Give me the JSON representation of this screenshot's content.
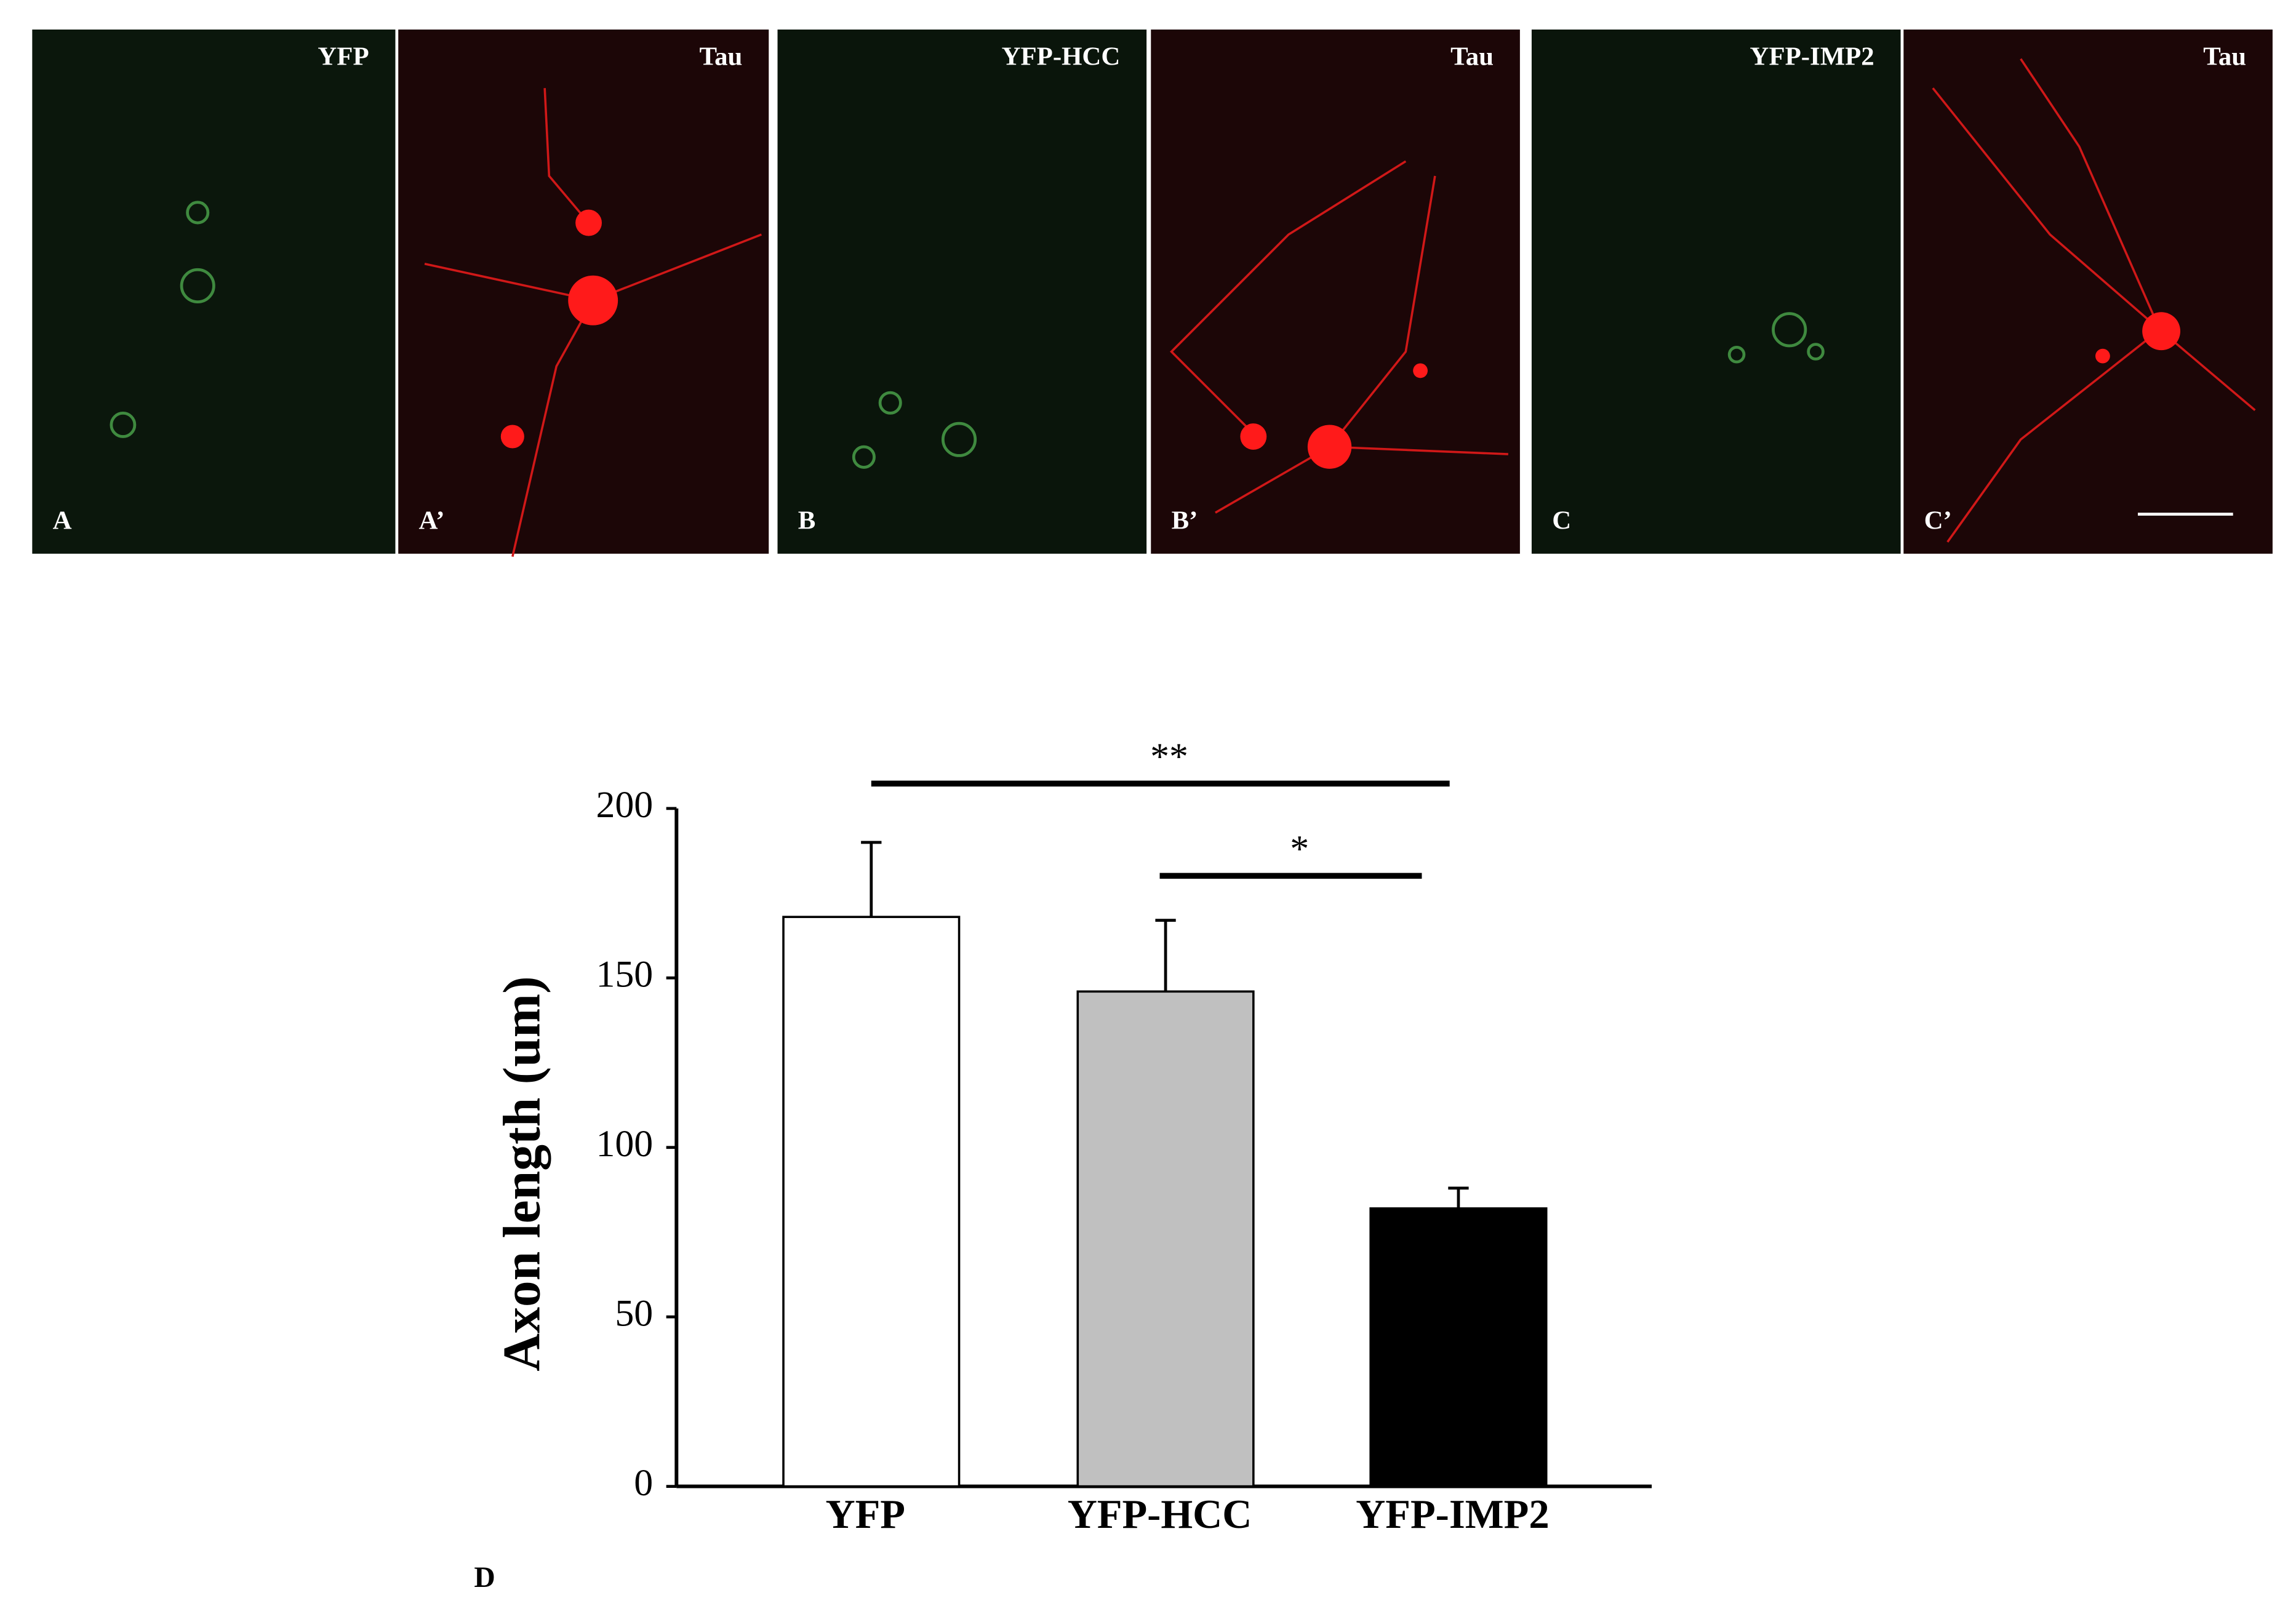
{
  "panels": [
    {
      "title": "YFP",
      "label": "A"
    },
    {
      "title": "Tau",
      "label": "A’"
    },
    {
      "title": "YFP-HCC",
      "label": "B"
    },
    {
      "title": "Tau",
      "label": "B’"
    },
    {
      "title": "YFP-IMP2",
      "label": "C"
    },
    {
      "title": "Tau",
      "label": "C’"
    }
  ],
  "chart_data": {
    "type": "bar",
    "categories": [
      "YFP",
      "YFP-HCC",
      "YFP-IMP2"
    ],
    "values": [
      168,
      146,
      82
    ],
    "errors": [
      22,
      21,
      6
    ],
    "colors": [
      "#ffffff",
      "#c0c0c0",
      "#000000"
    ],
    "ylabel": "Axon length (um)",
    "ylim": [
      0,
      200
    ],
    "yticks": [
      0,
      50,
      100,
      150,
      200
    ],
    "annotations": [
      "**",
      "*"
    ],
    "panel_label": "D"
  }
}
